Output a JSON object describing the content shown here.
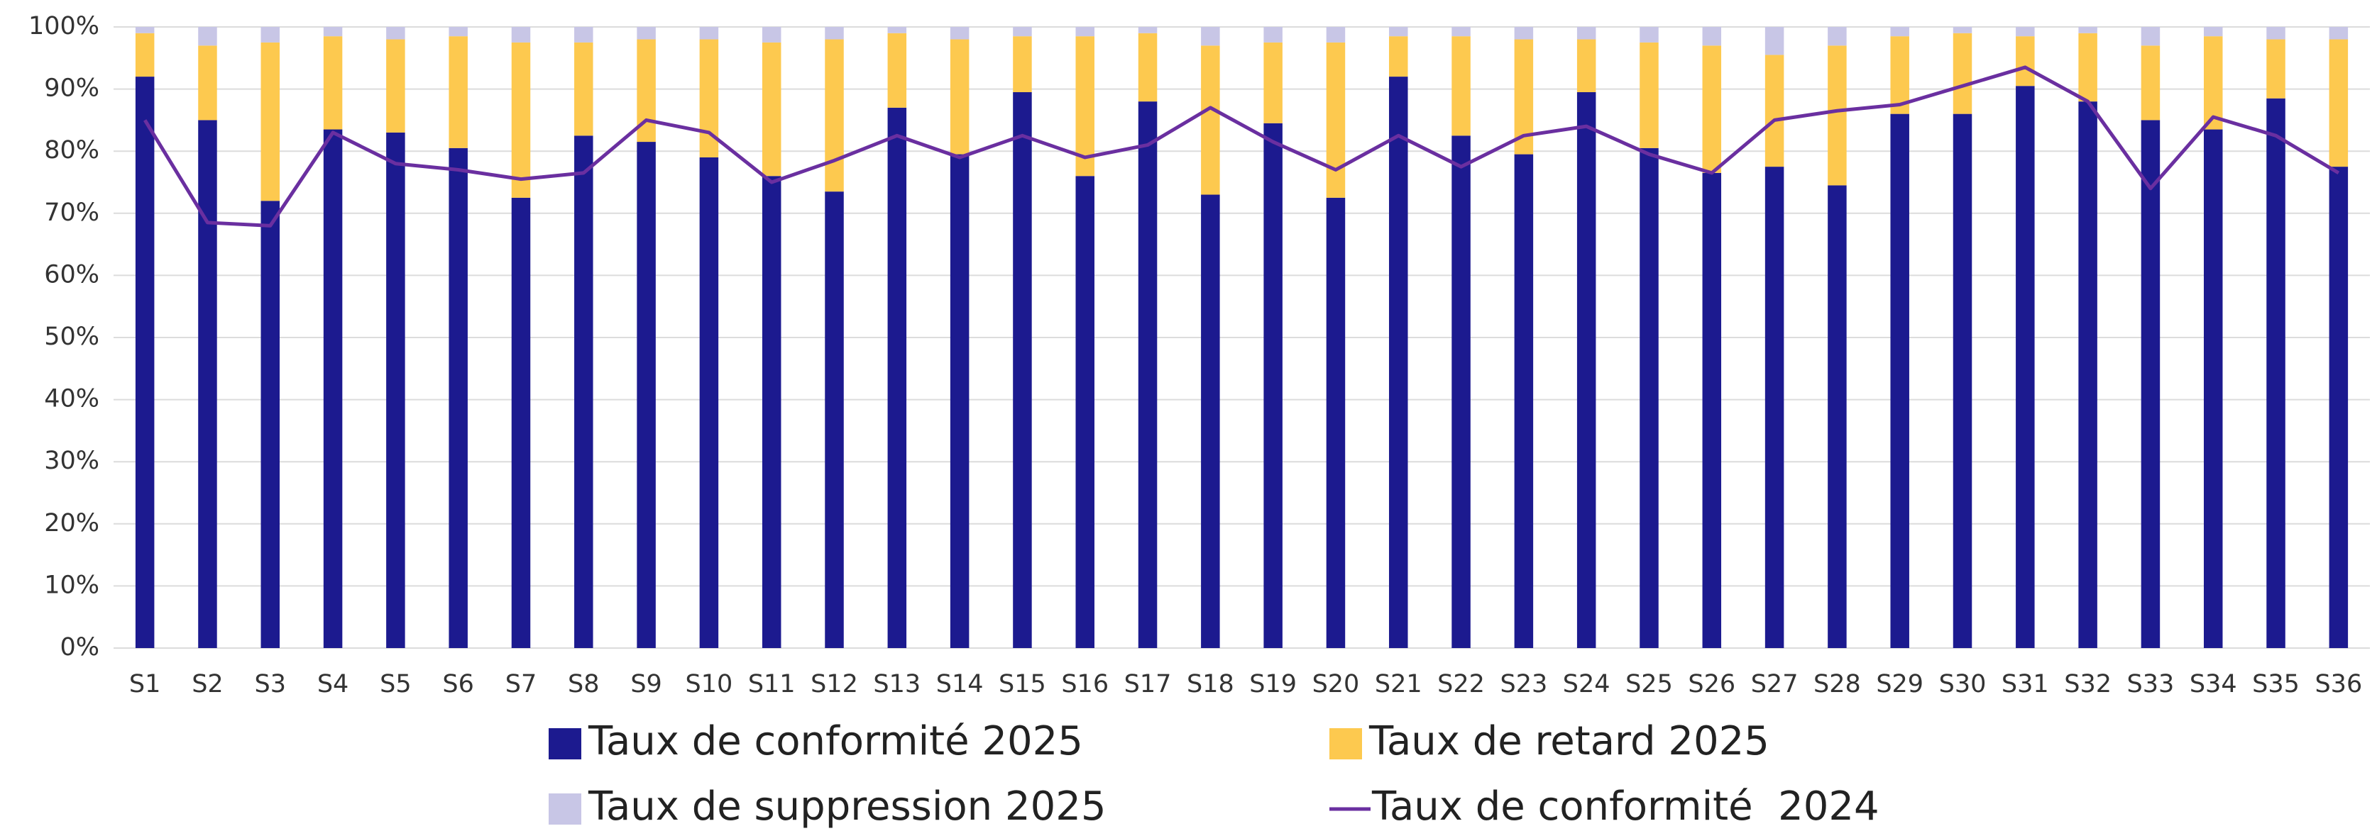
{
  "chart_data": {
    "type": "bar",
    "stacked": true,
    "categories": [
      "S1",
      "S2",
      "S3",
      "S4",
      "S5",
      "S6",
      "S7",
      "S8",
      "S9",
      "S10",
      "S11",
      "S12",
      "S13",
      "S14",
      "S15",
      "S16",
      "S17",
      "S18",
      "S19",
      "S20",
      "S21",
      "S22",
      "S23",
      "S24",
      "S25",
      "S26",
      "S27",
      "S28",
      "S29",
      "S30",
      "S31",
      "S32",
      "S33",
      "S34",
      "S35",
      "S36"
    ],
    "series": [
      {
        "name": "Taux de conformité 2025",
        "color": "#1c1a8f",
        "type": "bar",
        "values": [
          92,
          85,
          72,
          83.5,
          83,
          80.5,
          72.5,
          82.5,
          81.5,
          79,
          76,
          73.5,
          87,
          79.5,
          89.5,
          76,
          88,
          73,
          84.5,
          72.5,
          92,
          82.5,
          79.5,
          89.5,
          80.5,
          76.5,
          77.5,
          74.5,
          86,
          86,
          90.5,
          88,
          85,
          83.5,
          88.5,
          77.5
        ]
      },
      {
        "name": "Taux de retard 2025",
        "color": "#fdc94f",
        "type": "bar",
        "values": [
          7,
          12,
          25.5,
          15,
          15,
          18,
          25,
          15,
          16.5,
          19,
          21.5,
          24.5,
          12,
          18.5,
          9,
          22.5,
          11,
          24,
          13,
          25,
          6.5,
          16,
          18.5,
          8.5,
          17,
          20.5,
          18,
          22.5,
          12.5,
          13,
          8,
          11,
          12,
          15,
          9.5,
          20.5
        ]
      },
      {
        "name": "Taux de suppression 2025",
        "color": "#c8c6e6",
        "type": "bar",
        "values": [
          1,
          3,
          2.5,
          1.5,
          2,
          1.5,
          2.5,
          2.5,
          2,
          2,
          2.5,
          2,
          1,
          2,
          1.5,
          1.5,
          1,
          3,
          2.5,
          2.5,
          1.5,
          1.5,
          2,
          2,
          2.5,
          3,
          4.5,
          3,
          1.5,
          1,
          1.5,
          1,
          3,
          1.5,
          2,
          2
        ]
      },
      {
        "name": "Taux de conformité  2024",
        "color": "#6a2fa0",
        "type": "line",
        "values": [
          85,
          68.5,
          68,
          83,
          78,
          77,
          75.5,
          76.5,
          85,
          83,
          75,
          78.5,
          82.5,
          79,
          82.5,
          79,
          81,
          87,
          81.5,
          77,
          82.5,
          77.5,
          82.5,
          84,
          79.5,
          76.5,
          85,
          86.5,
          87.5,
          90.5,
          93.5,
          88,
          74,
          85.5,
          82.5,
          76.5
        ]
      }
    ],
    "ylim": [
      0,
      100
    ],
    "yticks": [
      {
        "value": 0,
        "label": "0%"
      },
      {
        "value": 10,
        "label": "10%"
      },
      {
        "value": 20,
        "label": "20%"
      },
      {
        "value": 30,
        "label": "30%"
      },
      {
        "value": 40,
        "label": "40%"
      },
      {
        "value": 50,
        "label": "50%"
      },
      {
        "value": 60,
        "label": "60%"
      },
      {
        "value": 70,
        "label": "70%"
      },
      {
        "value": 80,
        "label": "80%"
      },
      {
        "value": 90,
        "label": "90%"
      },
      {
        "value": 100,
        "label": "100%"
      }
    ],
    "grid": true,
    "legend": "bottom"
  }
}
